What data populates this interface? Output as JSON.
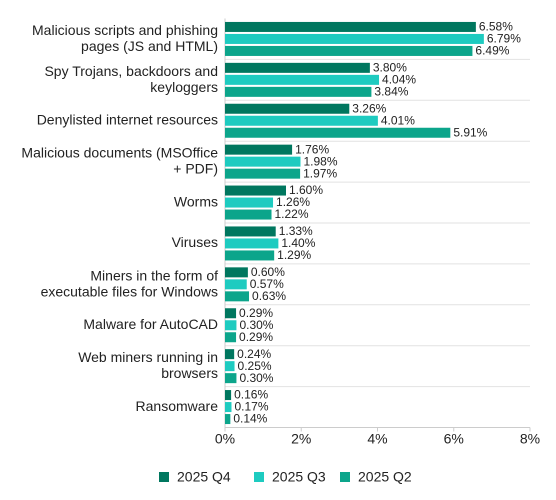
{
  "chart_data": {
    "type": "bar",
    "orientation": "horizontal",
    "categories": [
      "Malicious scripts and phishing\npages (JS and HTML)",
      "Spy Trojans, backdoors and\nkeyloggers",
      "Denylisted internet resources",
      "Malicious documents (MSOffice\n+ PDF)",
      "Worms",
      "Viruses",
      "Miners in the form of\nexecutable files for Windows",
      "Malware for AutoCAD",
      "Web miners running in\nbrowsers",
      "Ransomware"
    ],
    "series": [
      {
        "name": "2025 Q4",
        "color": "#00775f",
        "values": [
          6.58,
          3.8,
          3.26,
          1.76,
          1.6,
          1.33,
          0.6,
          0.29,
          0.24,
          0.16
        ],
        "value_labels": [
          "6.58%",
          "3.80%",
          "3.26%",
          "1.76%",
          "1.60%",
          "1.33%",
          "0.60%",
          "0.29%",
          "0.24%",
          "0.16%"
        ]
      },
      {
        "name": "2025 Q3",
        "color": "#1ecbc0",
        "values": [
          6.79,
          4.04,
          4.01,
          1.98,
          1.26,
          1.4,
          0.57,
          0.3,
          0.25,
          0.17
        ],
        "value_labels": [
          "6.79%",
          "4.04%",
          "4.01%",
          "1.98%",
          "1.26%",
          "1.40%",
          "0.57%",
          "0.30%",
          "0.25%",
          "0.17%"
        ]
      },
      {
        "name": "2025 Q2",
        "color": "#0ca58b",
        "values": [
          6.49,
          3.84,
          5.91,
          1.97,
          1.22,
          1.29,
          0.63,
          0.29,
          0.3,
          0.14
        ],
        "value_labels": [
          "6.49%",
          "3.84%",
          "5.91%",
          "1.97%",
          "1.22%",
          "1.29%",
          "0.63%",
          "0.29%",
          "0.30%",
          "0.14%"
        ]
      }
    ],
    "xlim": [
      0,
      8
    ],
    "xticks": [
      {
        "value": 0,
        "label": "0%"
      },
      {
        "value": 2,
        "label": "2%"
      },
      {
        "value": 4,
        "label": "4%"
      },
      {
        "value": 6,
        "label": "6%"
      },
      {
        "value": 8,
        "label": "8%"
      }
    ],
    "grid": true,
    "legend": "bottom"
  }
}
